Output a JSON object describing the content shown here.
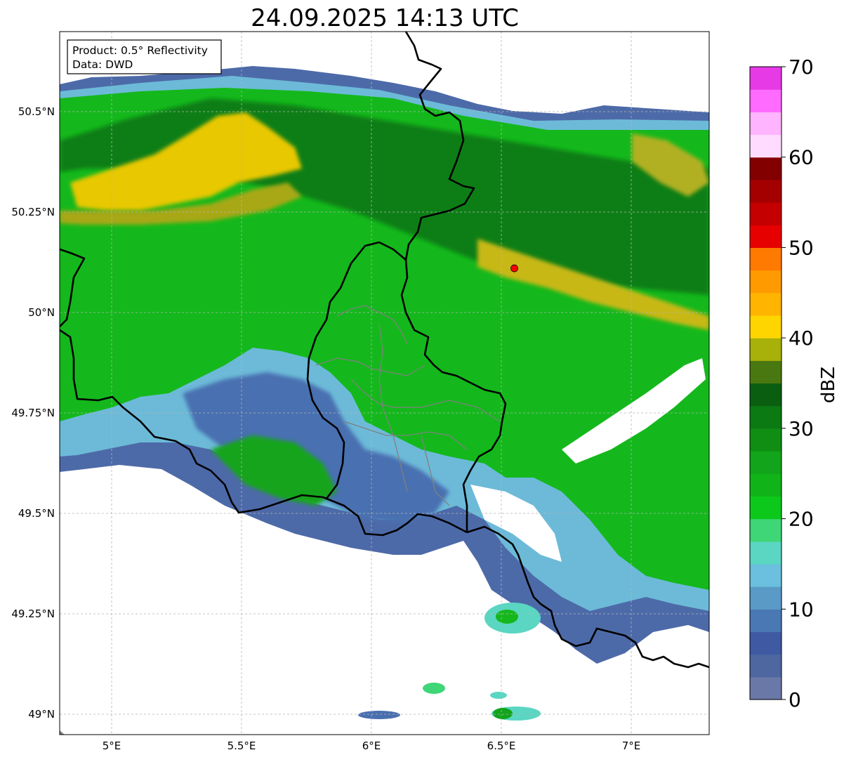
{
  "title": "24.09.2025 14:13 UTC",
  "info_box": {
    "product": "Product: 0.5° Reflectivity",
    "data": "Data: DWD"
  },
  "map": {
    "lon_ticks": [
      {
        "value": 5.0,
        "label": "5°E"
      },
      {
        "value": 5.5,
        "label": "5.5°E"
      },
      {
        "value": 6.0,
        "label": "6°E"
      },
      {
        "value": 6.5,
        "label": "6.5°E"
      },
      {
        "value": 7.0,
        "label": "7°E"
      }
    ],
    "lat_ticks": [
      {
        "value": 50.5,
        "label": "50.5°N"
      },
      {
        "value": 50.25,
        "label": "50.25°N"
      },
      {
        "value": 50.0,
        "label": "50°N"
      },
      {
        "value": 49.75,
        "label": "49.75°N"
      },
      {
        "value": 49.5,
        "label": "49.5°N"
      },
      {
        "value": 49.25,
        "label": "49.25°N"
      },
      {
        "value": 49.0,
        "label": "49°N"
      }
    ],
    "radar_site": {
      "lon": 6.55,
      "lat": 50.11
    },
    "grid": true
  },
  "colorbar": {
    "label": "dBZ",
    "min": 0,
    "max": 70,
    "step": 2.5,
    "tick_labels": [
      "0",
      "10",
      "20",
      "30",
      "40",
      "50",
      "60",
      "70"
    ],
    "colors": [
      "#6a78a8",
      "#4e67a0",
      "#3f5aa3",
      "#4a78b4",
      "#5a9ac6",
      "#6ac0de",
      "#5ad6c2",
      "#3ed676",
      "#0cc81a",
      "#10b418",
      "#12a41a",
      "#108e14",
      "#0c7a12",
      "#0a5e10",
      "#4a7810",
      "#a8b00a",
      "#ffd500",
      "#ffb400",
      "#ff9a00",
      "#ff7a00",
      "#e60000",
      "#c40000",
      "#a40000",
      "#820000",
      "#ffdcff",
      "#ffb4ff",
      "#ff6aff",
      "#e63ae6"
    ]
  },
  "colors": {
    "border": "#000000",
    "admin_border": "#808080",
    "radar_marker": "#ff0000",
    "grid": "#b4b4b4"
  }
}
